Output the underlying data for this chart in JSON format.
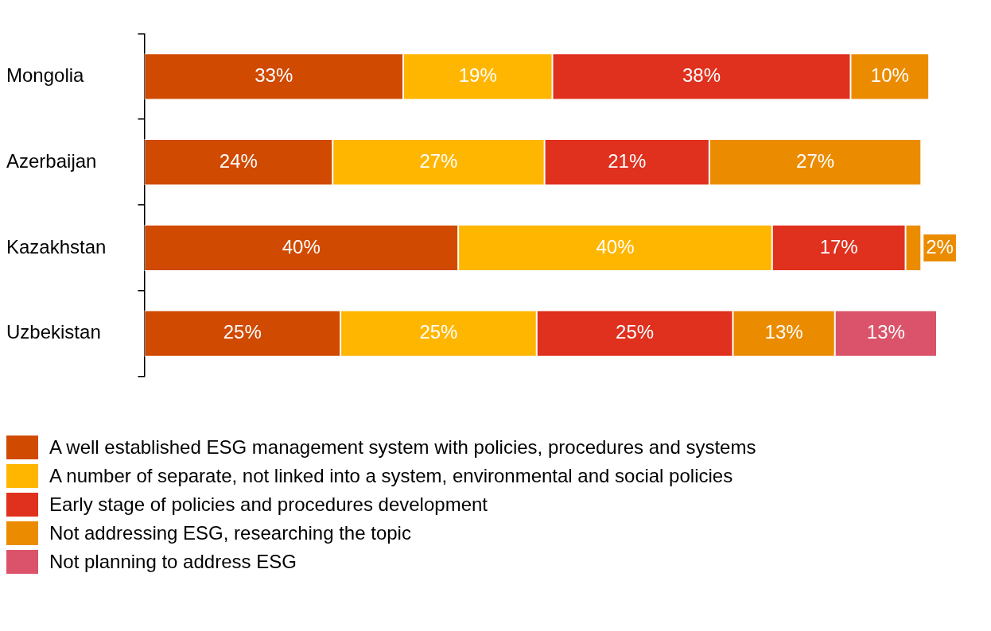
{
  "chart_data": {
    "type": "bar",
    "orientation": "horizontal",
    "stacked": true,
    "categories": [
      "Mongolia",
      "Azerbaijan",
      "Kazakhstan",
      "Uzbekistan"
    ],
    "series": [
      {
        "name": "A well established ESG management system with policies, procedures and systems",
        "color": "#d04a02",
        "values": [
          33,
          24,
          40,
          25
        ],
        "value_labels": [
          "33%",
          "24%",
          "40%",
          "25%"
        ]
      },
      {
        "name": "A number of separate, not linked into a system, environmental and social policies",
        "color": "#ffb600",
        "values": [
          19,
          27,
          40,
          25
        ],
        "value_labels": [
          "19%",
          "27%",
          "40%",
          "25%"
        ]
      },
      {
        "name": "Early stage of policies and procedures development",
        "color": "#e0301e",
        "values": [
          38,
          21,
          17,
          25
        ],
        "value_labels": [
          "38%",
          "21%",
          "17%",
          "25%"
        ]
      },
      {
        "name": "Not addressing ESG, researching the topic",
        "color": "#eb8c00",
        "values": [
          10,
          27,
          2,
          13
        ],
        "value_labels": [
          "10%",
          "27%",
          "2%",
          "13%"
        ]
      },
      {
        "name": "Not planning to address ESG",
        "color": "#db536a",
        "values": [
          null,
          null,
          null,
          13
        ],
        "value_labels": [
          null,
          null,
          null,
          "13%"
        ]
      }
    ],
    "tick_labels": "y",
    "legend": "bottom left"
  }
}
